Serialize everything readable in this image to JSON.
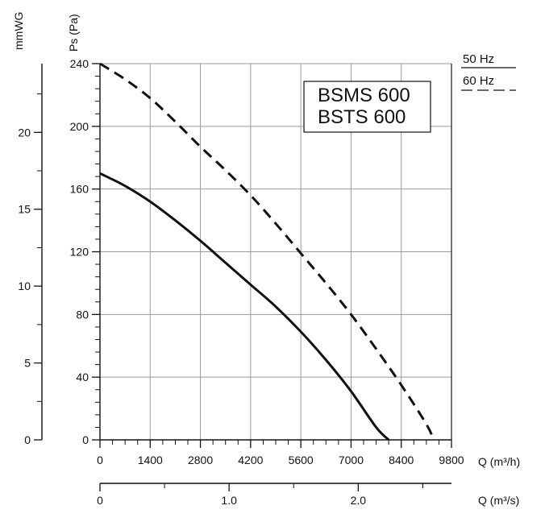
{
  "chart_data": {
    "type": "line",
    "x_label": "Q (m³/h)",
    "x2_label": "Q (m³/s)",
    "y_label": "Ps (Pa)",
    "y2_label": "mmWG",
    "x_ticks": [
      "0",
      "1400",
      "2800",
      "4200",
      "5600",
      "7000",
      "8400",
      "9800"
    ],
    "x2_ticks": [
      "0",
      "1.0",
      "2.0"
    ],
    "y_ticks": [
      "0",
      "40",
      "80",
      "120",
      "160",
      "200",
      "240"
    ],
    "y2_ticks": [
      "0",
      "5",
      "10",
      "15",
      "20"
    ],
    "xlim": [
      0,
      9800
    ],
    "ylim": [
      0,
      240
    ],
    "y2lim": [
      0,
      24.47
    ],
    "x2lim": [
      0,
      2.7222
    ],
    "grid": true,
    "model_labels": [
      "BSMS 600",
      "BSTS 600"
    ],
    "series": [
      {
        "name": "50 Hz",
        "style": "solid",
        "x": [
          0,
          700,
          1400,
          2100,
          2800,
          3500,
          4200,
          4900,
          5600,
          6300,
          7000,
          7700,
          8050
        ],
        "y": [
          170,
          162,
          152,
          140,
          127,
          113,
          99,
          85,
          69,
          51,
          31,
          8,
          0
        ]
      },
      {
        "name": "60 Hz",
        "style": "dashed",
        "x": [
          0,
          700,
          1400,
          2100,
          2800,
          3500,
          4200,
          4900,
          5600,
          6300,
          7000,
          7700,
          8400,
          9100,
          9300
        ],
        "y": [
          240,
          230,
          218,
          203,
          187,
          172,
          156,
          138,
          119,
          100,
          80,
          58,
          35,
          10,
          0
        ]
      }
    ],
    "legend": {
      "position": "top-right",
      "entries": [
        {
          "label": "50 Hz",
          "style": "solid"
        },
        {
          "label": "60 Hz",
          "style": "dashed"
        }
      ]
    }
  }
}
